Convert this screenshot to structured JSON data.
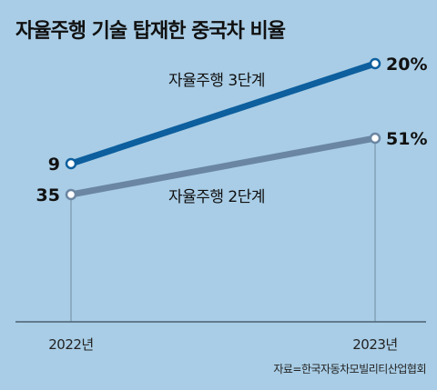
{
  "title": "자율주행 기술 탑재한 중국차 비율",
  "source": "자료=한국자동차모빌리티산업협회",
  "chart_data": {
    "type": "line",
    "categories": [
      "2022년",
      "2023년"
    ],
    "series": [
      {
        "name": "자율주행 3단계",
        "values": [
          9,
          20
        ],
        "value_labels": [
          "9",
          "20%"
        ],
        "color": "#0d5f9e"
      },
      {
        "name": "자율주행 2단계",
        "values": [
          35,
          51
        ],
        "value_labels": [
          "35",
          "51%"
        ],
        "color": "#6a86a3"
      }
    ],
    "grid": false,
    "legend": "inline labels on lines"
  }
}
